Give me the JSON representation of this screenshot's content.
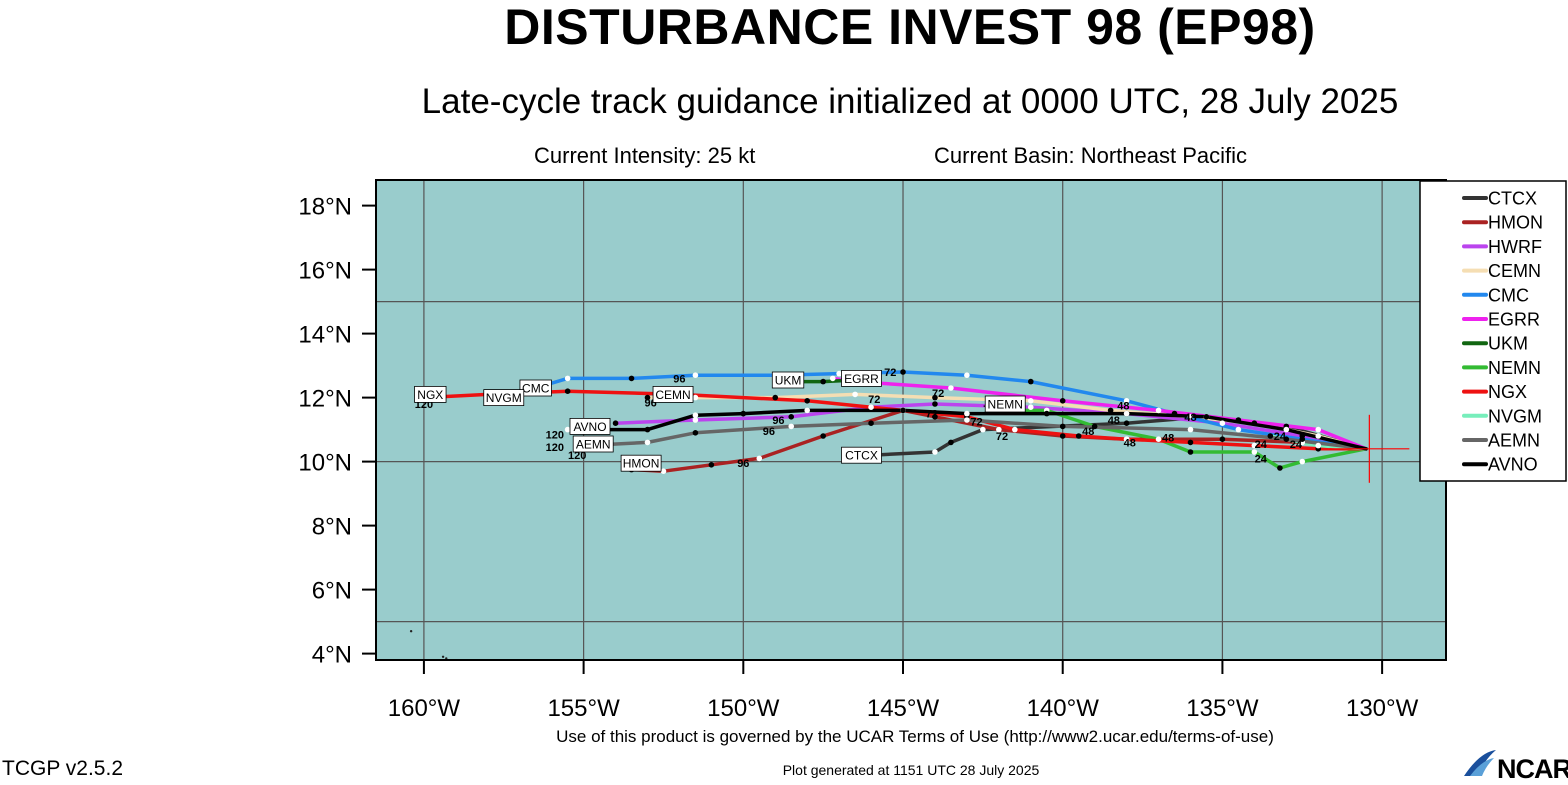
{
  "header": {
    "title": "DISTURBANCE INVEST 98 (EP98)",
    "subtitle": "Late-cycle track guidance initialized at 0000 UTC, 28 July 2025",
    "intensity": "Current Intensity: 25 kt",
    "basin": "Current Basin: Northeast Pacific"
  },
  "footer": {
    "terms": "Use of this product is governed by the UCAR Terms of Use (http://www2.ucar.edu/terms-of-use)",
    "version": "TCGP v2.5.2",
    "generated": "Plot generated at 1151 UTC   28 July 2025",
    "logo_text": "NCAR"
  },
  "colors": {
    "ocean": "#99cccc",
    "grid": "#555555",
    "storm_marker": "#ff0000"
  },
  "chart_data": {
    "type": "line",
    "title": "DISTURBANCE INVEST 98 (EP98)",
    "subtitle": "Late-cycle track guidance initialized at 0000 UTC, 28 July 2025",
    "xlabel": "",
    "ylabel": "",
    "xlim": [
      -161.5,
      -128
    ],
    "ylim": [
      3.8,
      18.8
    ],
    "x_ticks": [
      -160,
      -155,
      -150,
      -145,
      -140,
      -135,
      -130
    ],
    "x_tick_labels": [
      "160°W",
      "155°W",
      "150°W",
      "145°W",
      "140°W",
      "135°W",
      "130°W"
    ],
    "y_ticks": [
      4,
      6,
      8,
      10,
      12,
      14,
      16,
      18
    ],
    "y_tick_labels": [
      "4°N",
      "6°N",
      "8°N",
      "10°N",
      "12°N",
      "14°N",
      "16°N",
      "18°N"
    ],
    "grid": true,
    "legend_position": "right",
    "storm_position": [
      -130.4,
      10.4
    ],
    "series": [
      {
        "name": "CTCX",
        "color": "#333333",
        "points": [
          [
            -130.5,
            10.4
          ],
          [
            -133,
            11.1
          ],
          [
            -135.5,
            11.4
          ],
          [
            -138,
            11.2
          ],
          [
            -142.5,
            11.0
          ],
          [
            -143.5,
            10.6
          ],
          [
            -144,
            10.3
          ],
          [
            -146,
            10.2
          ]
        ],
        "label": {
          "text": "CTCX",
          "x": -146.3,
          "y": 10.2
        }
      },
      {
        "name": "HMON",
        "color": "#aa2222",
        "points": [
          [
            -130.5,
            10.4
          ],
          [
            -132.5,
            10.6
          ],
          [
            -135,
            10.7
          ],
          [
            -138,
            10.7
          ],
          [
            -140,
            10.8
          ],
          [
            -142,
            11.0
          ],
          [
            -144,
            11.4
          ],
          [
            -145,
            11.6
          ],
          [
            -147.5,
            10.8
          ],
          [
            -149.5,
            10.1
          ],
          [
            -151,
            9.9
          ],
          [
            -152.5,
            9.7
          ],
          [
            -153.5,
            9.75
          ]
        ],
        "label": {
          "text": "HMON",
          "x": -153.2,
          "y": 9.95
        }
      },
      {
        "name": "HWRF",
        "color": "#bb44ee",
        "points": [
          [
            -130.5,
            10.4
          ],
          [
            -132.5,
            10.8
          ],
          [
            -135,
            11.2
          ],
          [
            -138,
            11.5
          ],
          [
            -141,
            11.7
          ],
          [
            -144,
            11.8
          ],
          [
            -146,
            11.7
          ],
          [
            -148.5,
            11.4
          ],
          [
            -151.5,
            11.3
          ],
          [
            -154,
            11.2
          ]
        ],
        "label": null
      },
      {
        "name": "CEMN",
        "color": "#f5deb3",
        "points": [
          [
            -130.5,
            10.4
          ],
          [
            -132,
            10.8
          ],
          [
            -134,
            11.2
          ],
          [
            -136,
            11.4
          ],
          [
            -138.5,
            11.6
          ],
          [
            -141,
            11.9
          ],
          [
            -144,
            12.0
          ],
          [
            -146.5,
            12.1
          ],
          [
            -149,
            12.0
          ],
          [
            -151.5,
            12.0
          ],
          [
            -153,
            12.0
          ]
        ],
        "label": {
          "text": "CEMN",
          "x": -152.2,
          "y": 12.1
        }
      },
      {
        "name": "CMC",
        "color": "#2288ee",
        "points": [
          [
            -130.5,
            10.4
          ],
          [
            -132.5,
            10.7
          ],
          [
            -134.5,
            11.0
          ],
          [
            -136.5,
            11.5
          ],
          [
            -138,
            11.9
          ],
          [
            -141,
            12.5
          ],
          [
            -143,
            12.7
          ],
          [
            -145,
            12.8
          ],
          [
            -147,
            12.75
          ],
          [
            -149,
            12.7
          ],
          [
            -151.5,
            12.7
          ],
          [
            -153.5,
            12.6
          ],
          [
            -155.5,
            12.6
          ],
          [
            -156.5,
            12.3
          ]
        ],
        "label": {
          "text": "CMC",
          "x": -156.5,
          "y": 12.3
        }
      },
      {
        "name": "EGRR",
        "color": "#ee22ee",
        "points": [
          [
            -130.5,
            10.4
          ],
          [
            -132,
            11.0
          ],
          [
            -134.5,
            11.3
          ],
          [
            -137,
            11.6
          ],
          [
            -140,
            11.9
          ],
          [
            -143.5,
            12.3
          ],
          [
            -146.5,
            12.5
          ],
          [
            -147.2,
            12.6
          ]
        ],
        "label": {
          "text": "EGRR",
          "x": -146.3,
          "y": 12.6
        }
      },
      {
        "name": "UKM",
        "color": "#116611",
        "points": [
          [
            -146.5,
            12.55
          ],
          [
            -147.5,
            12.5
          ],
          [
            -148.6,
            12.5
          ]
        ],
        "label": {
          "text": "UKM",
          "x": -148.6,
          "y": 12.55
        }
      },
      {
        "name": "NEMN",
        "color": "#33bb33",
        "points": [
          [
            -130.5,
            10.4
          ],
          [
            -132.5,
            10.0
          ],
          [
            -133.2,
            9.8
          ],
          [
            -134,
            10.3
          ],
          [
            -136,
            10.3
          ],
          [
            -137,
            10.7
          ],
          [
            -139,
            11.1
          ],
          [
            -140.5,
            11.6
          ],
          [
            -142,
            11.6
          ]
        ],
        "label": {
          "text": "NEMN",
          "x": -141.8,
          "y": 11.8
        }
      },
      {
        "name": "NGX",
        "color": "#ee1111",
        "points": [
          [
            -130.5,
            10.4
          ],
          [
            -132,
            10.4
          ],
          [
            -134,
            10.5
          ],
          [
            -136,
            10.6
          ],
          [
            -138,
            10.7
          ],
          [
            -139.5,
            10.8
          ],
          [
            -141.5,
            11.0
          ],
          [
            -143,
            11.4
          ],
          [
            -145,
            11.6
          ],
          [
            -148,
            11.9
          ],
          [
            -152,
            12.1
          ],
          [
            -155.5,
            12.2
          ],
          [
            -158,
            12.1
          ],
          [
            -160,
            12.0
          ]
        ],
        "label": {
          "text": "NGX",
          "x": -159.8,
          "y": 12.1
        }
      },
      {
        "name": "NVGM",
        "color": "#77eebb",
        "points": [
          [
            -130.5,
            10.4
          ],
          [
            -132,
            10.5
          ],
          [
            -133.5,
            10.8
          ]
        ],
        "label": {
          "text": "NVGM",
          "x": -157.5,
          "y": 12.0
        }
      },
      {
        "name": "AEMN",
        "color": "#666666",
        "points": [
          [
            -130.5,
            10.4
          ],
          [
            -133,
            10.7
          ],
          [
            -136,
            11.0
          ],
          [
            -140,
            11.1
          ],
          [
            -143,
            11.3
          ],
          [
            -146,
            11.2
          ],
          [
            -148.5,
            11.1
          ],
          [
            -151.5,
            10.9
          ],
          [
            -153,
            10.6
          ],
          [
            -155,
            10.5
          ]
        ],
        "label": {
          "text": "AEMN",
          "x": -154.7,
          "y": 10.55
        }
      },
      {
        "name": "AVNO",
        "color": "#000000",
        "points": [
          [
            -130.5,
            10.4
          ],
          [
            -133,
            11.0
          ],
          [
            -135.5,
            11.4
          ],
          [
            -138,
            11.5
          ],
          [
            -140.5,
            11.5
          ],
          [
            -143,
            11.5
          ],
          [
            -145,
            11.6
          ],
          [
            -148,
            11.6
          ],
          [
            -150,
            11.5
          ],
          [
            -151.5,
            11.45
          ],
          [
            -153,
            11.0
          ],
          [
            -155.5,
            11.0
          ]
        ],
        "label": {
          "text": "AVNO",
          "x": -154.8,
          "y": 11.1
        }
      }
    ],
    "hour_labels": [
      {
        "text": "120",
        "x": -160.0,
        "y": 11.8
      },
      {
        "text": "96",
        "x": -152.0,
        "y": 12.6
      },
      {
        "text": "96",
        "x": -152.9,
        "y": 11.85
      },
      {
        "text": "96",
        "x": -148.9,
        "y": 11.3
      },
      {
        "text": "96",
        "x": -149.2,
        "y": 10.95
      },
      {
        "text": "96",
        "x": -150.0,
        "y": 9.95
      },
      {
        "text": "72",
        "x": -145.4,
        "y": 12.8
      },
      {
        "text": "72",
        "x": -143.9,
        "y": 12.15
      },
      {
        "text": "72",
        "x": -145.9,
        "y": 11.95
      },
      {
        "text": "72",
        "x": -144.1,
        "y": 11.5
      },
      {
        "text": "72",
        "x": -142.7,
        "y": 11.25
      },
      {
        "text": "72",
        "x": -141.9,
        "y": 10.8
      },
      {
        "text": "72",
        "x": -142.3,
        "y": 11.65
      },
      {
        "text": "48",
        "x": -138.1,
        "y": 11.75
      },
      {
        "text": "48",
        "x": -136.0,
        "y": 11.4
      },
      {
        "text": "48",
        "x": -138.4,
        "y": 11.3
      },
      {
        "text": "48",
        "x": -139.2,
        "y": 10.95
      },
      {
        "text": "48",
        "x": -137.9,
        "y": 10.6
      },
      {
        "text": "48",
        "x": -136.7,
        "y": 10.75
      },
      {
        "text": "24",
        "x": -133.2,
        "y": 10.8
      },
      {
        "text": "24",
        "x": -133.8,
        "y": 10.55
      },
      {
        "text": "24",
        "x": -132.7,
        "y": 10.55
      },
      {
        "text": "24",
        "x": -133.8,
        "y": 10.1
      },
      {
        "text": "120",
        "x": -155.9,
        "y": 10.85
      },
      {
        "text": "120",
        "x": -155.9,
        "y": 10.45
      },
      {
        "text": "120",
        "x": -155.2,
        "y": 10.2
      }
    ],
    "land_dots": [
      [
        -160.4,
        4.7
      ],
      [
        -159.4,
        3.9
      ],
      [
        -159.3,
        3.85
      ]
    ]
  }
}
